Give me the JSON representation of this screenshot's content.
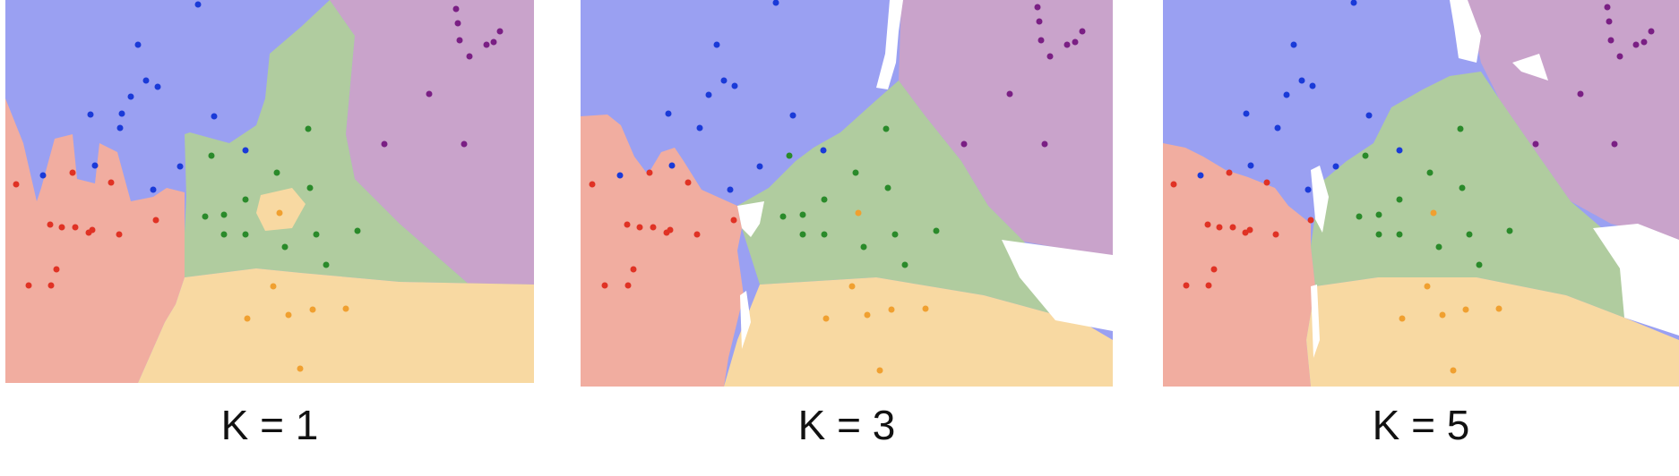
{
  "colors": {
    "blue_region": "#9aa0f2",
    "purple_region": "#c9a3cb",
    "green_region": "#b0cc9f",
    "red_region": "#f1ada0",
    "orange_region": "#f8d9a2",
    "blue_point": "#1a3ad8",
    "purple_point": "#7a1f84",
    "green_point": "#2a8a2a",
    "red_point": "#e03224",
    "orange_point": "#f0a030"
  },
  "panels": [
    {
      "caption": "K = 1"
    },
    {
      "caption": "K = 3"
    },
    {
      "caption": "K = 5"
    }
  ]
}
